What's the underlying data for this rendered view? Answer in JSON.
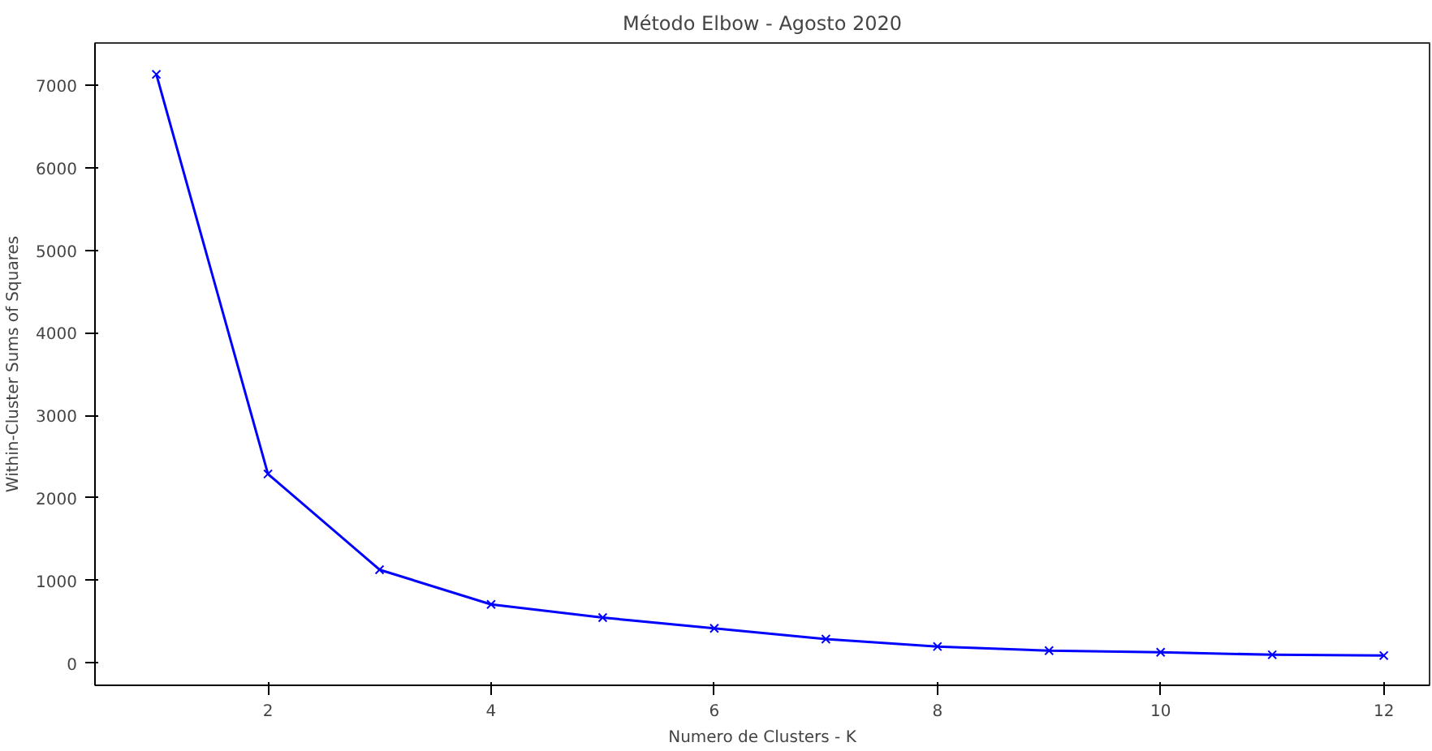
{
  "chart_data": {
    "type": "line",
    "title": "Método Elbow - Agosto 2020",
    "xlabel": "Numero de Clusters - K",
    "ylabel": "Within-Cluster Sums of Squares",
    "x": [
      1,
      2,
      3,
      4,
      5,
      6,
      7,
      8,
      9,
      10,
      11,
      12
    ],
    "series": [
      {
        "color": "#0000ff",
        "values": [
          7130,
          2290,
          1130,
          710,
          550,
          420,
          290,
          200,
          150,
          130,
          100,
          90
        ]
      }
    ],
    "xlim": [
      0.45,
      12.41
    ],
    "ylim": [
      -270,
      7510
    ],
    "xticks": [
      2,
      4,
      6,
      8,
      10,
      12
    ],
    "yticks": [
      0,
      1000,
      2000,
      3000,
      4000,
      5000,
      6000,
      7000
    ],
    "marker": "cross",
    "line_style": "solid",
    "grid": false
  }
}
